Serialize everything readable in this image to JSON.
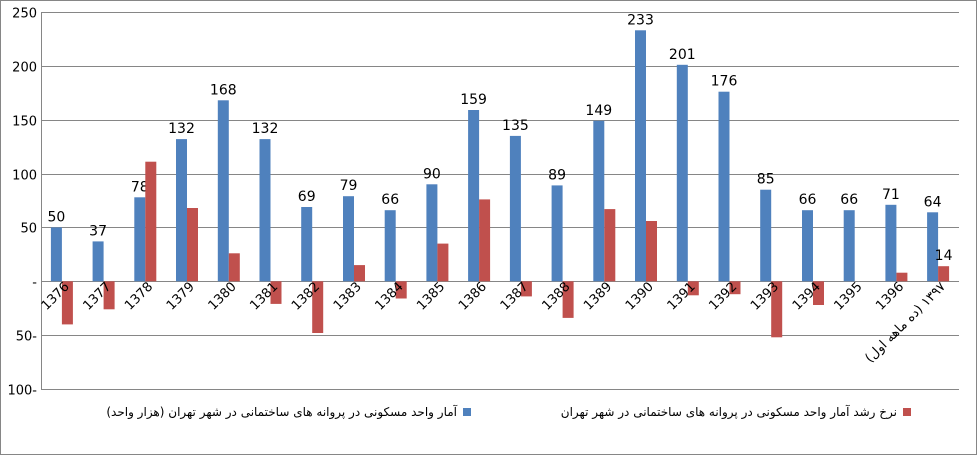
{
  "chart_data": {
    "type": "bar",
    "categories": [
      "1376",
      "1377",
      "1378",
      "1379",
      "1380",
      "1381",
      "1382",
      "1383",
      "1384",
      "1385",
      "1386",
      "1387",
      "1388",
      "1389",
      "1390",
      "1391",
      "1392",
      "1393",
      "1394",
      "1395",
      "1396",
      "(ده ماهه اول) ۱۳۹۷"
    ],
    "series": [
      {
        "name": "آمار واحد مسکونی در پروانه های ساختمانی در شهر تهران (هزار واحد)",
        "color": "#4f81bd",
        "values": [
          50,
          37,
          78,
          132,
          168,
          132,
          69,
          79,
          66,
          90,
          159,
          135,
          89,
          149,
          233,
          201,
          176,
          85,
          66,
          66,
          71,
          64
        ],
        "labels": [
          "50",
          "37",
          "78",
          "132",
          "168",
          "132",
          "69",
          "79",
          "66",
          "90",
          "159",
          "135",
          "89",
          "149",
          "233",
          "201",
          "176",
          "85",
          "66",
          "66",
          "71",
          "64"
        ]
      },
      {
        "name": "نرخ رشد آمار واحد مسکونی در پروانه های ساختمانی در شهر تهران",
        "color": "#c0504d",
        "values": [
          -40,
          -26,
          111,
          68,
          26,
          -21,
          -48,
          15,
          -16,
          35,
          76,
          -14,
          -34,
          67,
          56,
          -13,
          -12,
          -52,
          -22,
          0,
          8,
          14
        ],
        "labels": [
          "",
          "",
          "",
          "",
          "",
          "",
          "",
          "",
          "",
          "",
          "",
          "",
          "",
          "",
          "",
          "",
          "",
          "",
          "",
          "",
          "",
          "14"
        ]
      }
    ],
    "ylim": [
      -100,
      250
    ],
    "yticks": [
      {
        "value": 250,
        "label": "250"
      },
      {
        "value": 200,
        "label": "200"
      },
      {
        "value": 150,
        "label": "150"
      },
      {
        "value": 100,
        "label": "100"
      },
      {
        "value": 50,
        "label": "50"
      },
      {
        "value": 0,
        "label": "-"
      },
      {
        "value": -50,
        "label": "50-"
      },
      {
        "value": -100,
        "label": "100-"
      }
    ],
    "grid": true,
    "legend_position": "bottom"
  },
  "legend": {
    "series1_label": "آمار واحد مسکونی در پروانه های ساختمانی در شهر تهران (هزار واحد)",
    "series2_label": "نرخ رشد آمار واحد مسکونی در پروانه های ساختمانی در شهر تهران"
  },
  "colors": {
    "series1": "#4f81bd",
    "series2": "#c0504d",
    "grid": "#868686"
  }
}
